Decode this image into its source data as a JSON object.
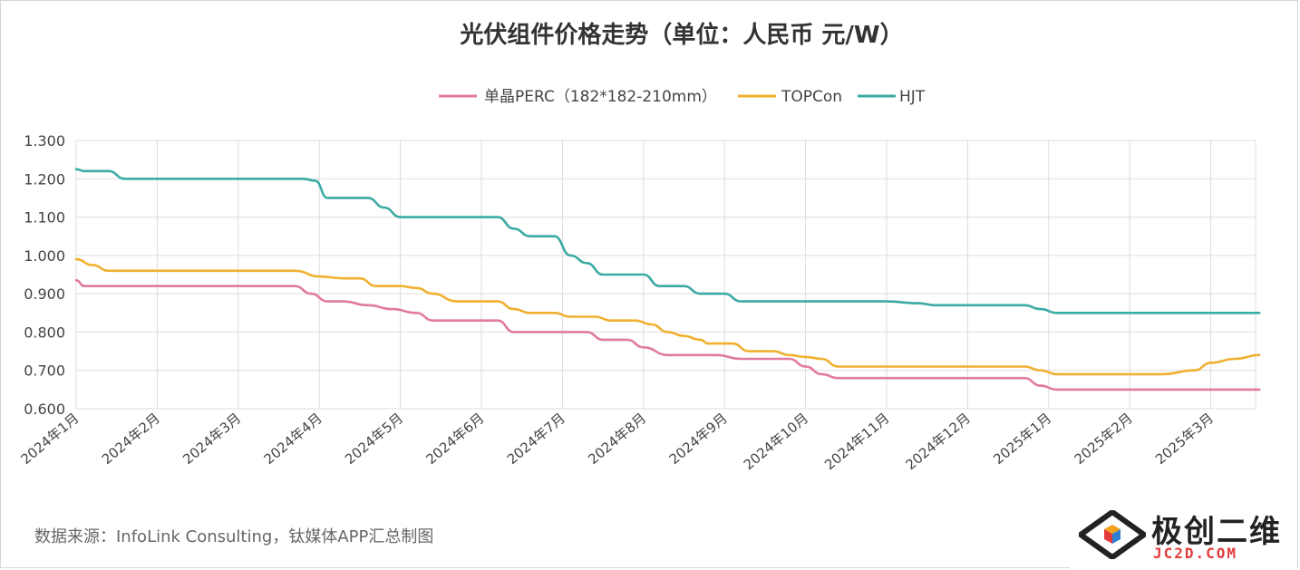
{
  "chart_data": {
    "type": "line",
    "title": "光伏组件价格走势（单位：人民币 元/W）",
    "x_ticks": [
      "2024年1月",
      "2024年2月",
      "2024年3月",
      "2024年4月",
      "2024年5月",
      "2024年6月",
      "2024年7月",
      "2024年8月",
      "2024年9月",
      "2024年10月",
      "2024年11月",
      "2024年12月",
      "2025年1月",
      "2025年2月",
      "2025年3月"
    ],
    "ylim": [
      0.6,
      1.3
    ],
    "y_ticks": [
      "1.300",
      "1.200",
      "1.100",
      "1.000",
      "0.900",
      "0.800",
      "0.700",
      "0.600"
    ],
    "grid": true,
    "legend_position": "top",
    "series": [
      {
        "name": "单晶PERC（182*182-210mm）",
        "color": "#e07aa0",
        "points": [
          [
            0,
            0.935
          ],
          [
            0.1,
            0.92
          ],
          [
            0.5,
            0.92
          ],
          [
            1,
            0.92
          ],
          [
            2,
            0.92
          ],
          [
            2.7,
            0.92
          ],
          [
            2.9,
            0.9
          ],
          [
            3.1,
            0.88
          ],
          [
            3.3,
            0.88
          ],
          [
            3.6,
            0.87
          ],
          [
            3.9,
            0.86
          ],
          [
            4.2,
            0.85
          ],
          [
            4.4,
            0.83
          ],
          [
            4.7,
            0.83
          ],
          [
            5.0,
            0.83
          ],
          [
            5.2,
            0.83
          ],
          [
            5.4,
            0.8
          ],
          [
            5.7,
            0.8
          ],
          [
            6.0,
            0.8
          ],
          [
            6.3,
            0.8
          ],
          [
            6.5,
            0.78
          ],
          [
            6.8,
            0.78
          ],
          [
            7.0,
            0.76
          ],
          [
            7.3,
            0.74
          ],
          [
            7.6,
            0.74
          ],
          [
            7.9,
            0.74
          ],
          [
            8.2,
            0.73
          ],
          [
            8.5,
            0.73
          ],
          [
            8.8,
            0.73
          ],
          [
            9.0,
            0.71
          ],
          [
            9.2,
            0.69
          ],
          [
            9.4,
            0.68
          ],
          [
            10,
            0.68
          ],
          [
            11,
            0.68
          ],
          [
            11.7,
            0.68
          ],
          [
            11.9,
            0.66
          ],
          [
            12.1,
            0.65
          ],
          [
            13,
            0.65
          ],
          [
            14,
            0.65
          ],
          [
            14.6,
            0.65
          ]
        ]
      },
      {
        "name": "TOPCon",
        "color": "#f0b030",
        "points": [
          [
            0,
            0.99
          ],
          [
            0.2,
            0.975
          ],
          [
            0.4,
            0.96
          ],
          [
            0.7,
            0.96
          ],
          [
            1,
            0.96
          ],
          [
            2,
            0.96
          ],
          [
            2.7,
            0.96
          ],
          [
            3.0,
            0.945
          ],
          [
            3.3,
            0.94
          ],
          [
            3.5,
            0.94
          ],
          [
            3.7,
            0.92
          ],
          [
            4.0,
            0.92
          ],
          [
            4.2,
            0.915
          ],
          [
            4.4,
            0.9
          ],
          [
            4.7,
            0.88
          ],
          [
            5.0,
            0.88
          ],
          [
            5.2,
            0.88
          ],
          [
            5.4,
            0.86
          ],
          [
            5.6,
            0.85
          ],
          [
            5.9,
            0.85
          ],
          [
            6.1,
            0.84
          ],
          [
            6.4,
            0.84
          ],
          [
            6.6,
            0.83
          ],
          [
            6.9,
            0.83
          ],
          [
            7.1,
            0.82
          ],
          [
            7.3,
            0.8
          ],
          [
            7.5,
            0.79
          ],
          [
            7.7,
            0.78
          ],
          [
            7.8,
            0.77
          ],
          [
            8.1,
            0.77
          ],
          [
            8.3,
            0.75
          ],
          [
            8.6,
            0.75
          ],
          [
            8.8,
            0.74
          ],
          [
            9.0,
            0.735
          ],
          [
            9.2,
            0.73
          ],
          [
            9.4,
            0.71
          ],
          [
            10,
            0.71
          ],
          [
            11,
            0.71
          ],
          [
            11.7,
            0.71
          ],
          [
            11.9,
            0.7
          ],
          [
            12.1,
            0.69
          ],
          [
            13,
            0.69
          ],
          [
            13.4,
            0.69
          ],
          [
            13.8,
            0.7
          ],
          [
            14.0,
            0.72
          ],
          [
            14.3,
            0.73
          ],
          [
            14.6,
            0.74
          ]
        ]
      },
      {
        "name": "HJT",
        "color": "#3aaba3",
        "points": [
          [
            0,
            1.225
          ],
          [
            0.1,
            1.22
          ],
          [
            0.4,
            1.22
          ],
          [
            0.6,
            1.2
          ],
          [
            1,
            1.2
          ],
          [
            2,
            1.2
          ],
          [
            2.8,
            1.2
          ],
          [
            2.95,
            1.195
          ],
          [
            3.1,
            1.15
          ],
          [
            3.3,
            1.15
          ],
          [
            3.6,
            1.15
          ],
          [
            3.8,
            1.125
          ],
          [
            4.0,
            1.1
          ],
          [
            4.3,
            1.1
          ],
          [
            5.0,
            1.1
          ],
          [
            5.2,
            1.1
          ],
          [
            5.4,
            1.07
          ],
          [
            5.6,
            1.05
          ],
          [
            5.9,
            1.05
          ],
          [
            6.1,
            1.0
          ],
          [
            6.3,
            0.98
          ],
          [
            6.5,
            0.95
          ],
          [
            6.8,
            0.95
          ],
          [
            7.0,
            0.95
          ],
          [
            7.2,
            0.92
          ],
          [
            7.5,
            0.92
          ],
          [
            7.7,
            0.9
          ],
          [
            8.0,
            0.9
          ],
          [
            8.2,
            0.88
          ],
          [
            9,
            0.88
          ],
          [
            10,
            0.88
          ],
          [
            10.4,
            0.875
          ],
          [
            10.6,
            0.87
          ],
          [
            11,
            0.87
          ],
          [
            11.7,
            0.87
          ],
          [
            11.9,
            0.86
          ],
          [
            12.1,
            0.85
          ],
          [
            13,
            0.85
          ],
          [
            14,
            0.85
          ],
          [
            14.6,
            0.85
          ]
        ]
      }
    ]
  },
  "source_note": "数据来源：InfoLink Consulting，钛媒体APP汇总制图",
  "watermark": {
    "name": "极创二维",
    "url": "JC2D.COM"
  }
}
